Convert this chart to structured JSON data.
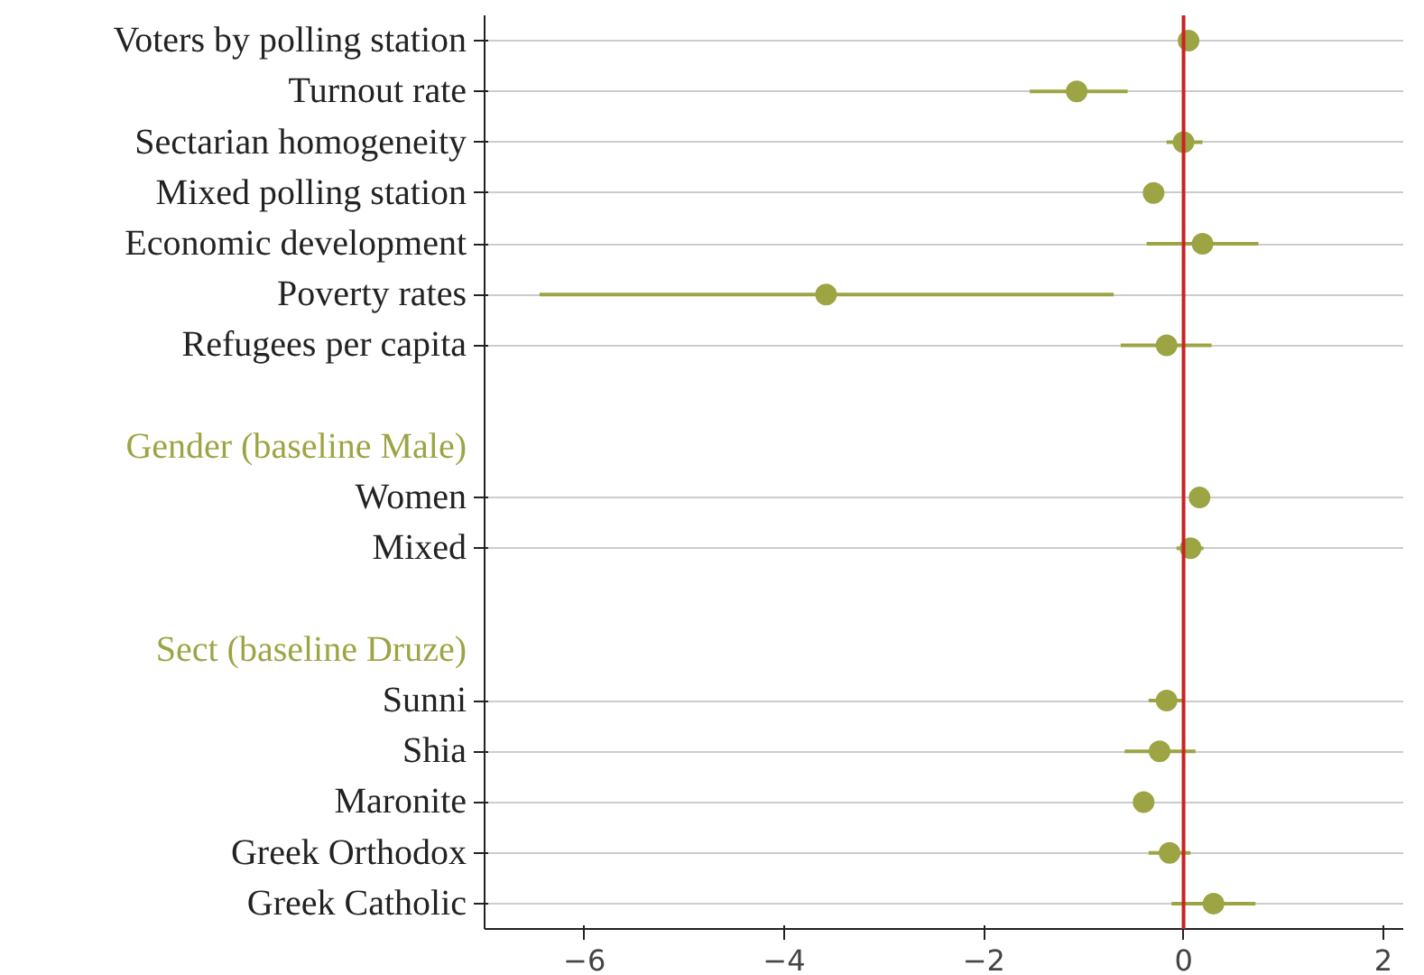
{
  "chart_data": {
    "type": "scatter",
    "orientation": "horizontal",
    "categories": [
      "Voters by polling station",
      "Turnout rate",
      "Sectarian homogeneity",
      "Mixed polling station",
      "Economic development",
      "Poverty rates",
      "Refugees per capita",
      null,
      "Gender (baseline Male)",
      "Women",
      "Mixed",
      null,
      "Sect (baseline Druze)",
      "Sunni",
      "Shia",
      "Maronite",
      "Greek Orthodox",
      "Greek Catholic"
    ],
    "series": [
      {
        "color": "#9da444",
        "values": [
          0.05,
          -1.07,
          0.0,
          -0.3,
          0.19,
          -3.58,
          -0.17,
          null,
          null,
          0.16,
          0.07,
          null,
          null,
          -0.17,
          -0.24,
          -0.4,
          -0.14,
          0.3
        ],
        "errors": [
          [
            0.0,
            0.1
          ],
          [
            -1.54,
            -0.56
          ],
          [
            -0.17,
            0.19
          ],
          [
            -0.38,
            -0.22
          ],
          [
            -0.37,
            0.75
          ],
          [
            -6.45,
            -0.7
          ],
          [
            -0.63,
            0.28
          ],
          null,
          null,
          [
            0.1,
            0.22
          ],
          [
            -0.07,
            0.2
          ],
          null,
          null,
          [
            -0.35,
            0.0
          ],
          [
            -0.59,
            0.12
          ],
          [
            -0.5,
            -0.3
          ],
          [
            -0.35,
            0.07
          ],
          [
            -0.12,
            0.72
          ]
        ]
      }
    ],
    "xlim": [
      -7,
      2.2
    ],
    "xticks": [
      -6,
      -4,
      -2,
      0,
      2
    ],
    "ref_lines": [
      {
        "axis": "x",
        "value": 0,
        "color": "#cc2222"
      }
    ],
    "grid": "y",
    "marker": "circle"
  }
}
